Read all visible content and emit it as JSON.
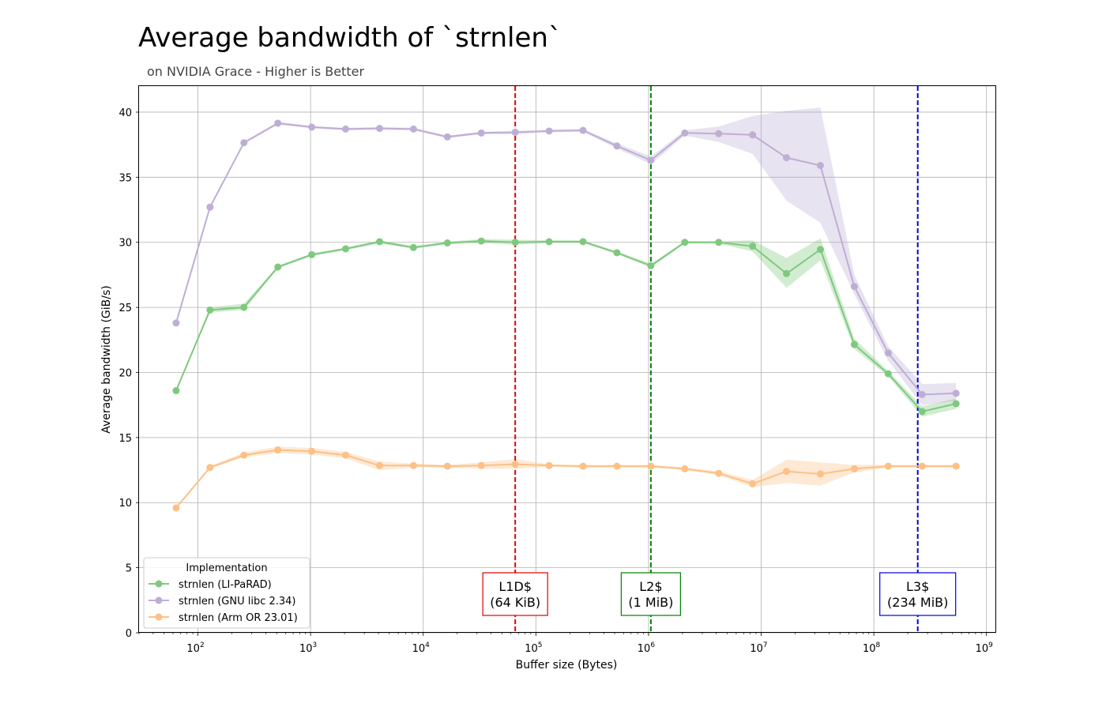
{
  "chart_data": {
    "type": "line",
    "title": "Average bandwidth of `strnlen`",
    "subtitle": "on NVIDIA Grace - Higher is Better",
    "xlabel": "Buffer size (Bytes)",
    "ylabel": "Average bandwidth (GiB/s)",
    "xscale": "log",
    "xlim": [
      30,
      1200000000
    ],
    "ylim": [
      0,
      42
    ],
    "x_tick_exponents": [
      "2",
      "3",
      "4",
      "5",
      "6",
      "7",
      "8",
      "9"
    ],
    "y_ticks": [
      0,
      5,
      10,
      15,
      20,
      25,
      30,
      35,
      40
    ],
    "grid": true,
    "legend": {
      "title": "Implementation",
      "placement": "lower-left"
    },
    "x": [
      64,
      128,
      256,
      512,
      1024,
      2048,
      4096,
      8192,
      16384,
      32768,
      65536,
      131072,
      262144,
      524288,
      1048576,
      2097152,
      4194304,
      8388608,
      16777216,
      33554432,
      67108864,
      134217728,
      268435456,
      536870912
    ],
    "series": [
      {
        "name": "strnlen (LI-PaRAD)",
        "color": "#7fc97f",
        "values": [
          18.6,
          24.8,
          25.0,
          28.1,
          29.05,
          29.5,
          30.05,
          29.6,
          29.95,
          30.1,
          30.0,
          30.05,
          30.05,
          29.2,
          28.2,
          30.0,
          30.0,
          29.7,
          27.6,
          29.45,
          22.15,
          19.9,
          17.0,
          17.6
        ],
        "lower": [
          18.6,
          24.6,
          24.8,
          28.0,
          28.95,
          29.4,
          29.9,
          29.5,
          29.85,
          29.95,
          29.8,
          29.95,
          29.95,
          29.1,
          28.05,
          29.9,
          29.9,
          29.3,
          26.5,
          28.6,
          21.8,
          19.7,
          16.6,
          17.2
        ],
        "upper": [
          18.6,
          25.0,
          25.3,
          28.2,
          29.15,
          29.6,
          30.15,
          29.7,
          30.05,
          30.25,
          30.2,
          30.15,
          30.15,
          29.3,
          28.35,
          30.1,
          30.1,
          30.15,
          28.8,
          30.3,
          22.6,
          20.1,
          17.4,
          18.0
        ]
      },
      {
        "name": "strnlen (GNU libc 2.34)",
        "color": "#beaed4",
        "values": [
          23.8,
          32.7,
          37.65,
          39.15,
          38.85,
          38.7,
          38.75,
          38.7,
          38.1,
          38.4,
          38.45,
          38.55,
          38.6,
          37.4,
          36.3,
          38.4,
          38.35,
          38.25,
          36.5,
          35.9,
          26.6,
          21.5,
          18.3,
          18.4
        ],
        "lower": [
          23.8,
          32.6,
          37.55,
          39.05,
          38.75,
          38.6,
          38.65,
          38.6,
          38.0,
          38.3,
          38.3,
          38.45,
          38.5,
          37.2,
          36.0,
          38.2,
          37.7,
          36.8,
          33.2,
          31.5,
          26.0,
          20.9,
          17.5,
          17.8
        ],
        "upper": [
          23.8,
          32.8,
          37.75,
          39.25,
          38.95,
          38.8,
          38.85,
          38.8,
          38.2,
          38.5,
          38.55,
          38.65,
          38.7,
          37.6,
          36.6,
          38.6,
          38.9,
          39.7,
          40.1,
          40.35,
          27.5,
          22.0,
          19.1,
          19.2
        ]
      },
      {
        "name": "strnlen (Arm OR 23.01)",
        "color": "#fdc086",
        "values": [
          9.6,
          12.7,
          13.65,
          14.05,
          13.95,
          13.65,
          12.85,
          12.85,
          12.8,
          12.85,
          12.95,
          12.85,
          12.8,
          12.8,
          12.8,
          12.6,
          12.25,
          11.45,
          12.4,
          12.2,
          12.6,
          12.8,
          12.8,
          12.8
        ],
        "lower": [
          9.6,
          12.6,
          13.5,
          13.8,
          13.7,
          13.4,
          12.5,
          12.7,
          12.7,
          12.6,
          12.6,
          12.75,
          12.7,
          12.7,
          12.7,
          12.5,
          12.1,
          11.2,
          11.5,
          11.3,
          12.3,
          12.7,
          12.7,
          12.7
        ],
        "upper": [
          9.6,
          12.8,
          13.85,
          14.3,
          14.2,
          13.9,
          13.15,
          13.0,
          12.9,
          13.1,
          13.35,
          12.95,
          12.9,
          12.9,
          12.9,
          12.7,
          12.4,
          11.75,
          13.3,
          13.1,
          12.9,
          12.9,
          12.9,
          12.9
        ]
      }
    ],
    "cache_lines": [
      {
        "label_line1": "L1D$",
        "label_line2": "(64 KiB)",
        "x": 65536,
        "color": "#e00000"
      },
      {
        "label_line1": "L2$",
        "label_line2": "(1 MiB)",
        "x": 1048576,
        "color": "#008000"
      },
      {
        "label_line1": "L3$",
        "label_line2": "(234 MiB)",
        "x": 245366784,
        "color": "#0000e0"
      }
    ]
  }
}
